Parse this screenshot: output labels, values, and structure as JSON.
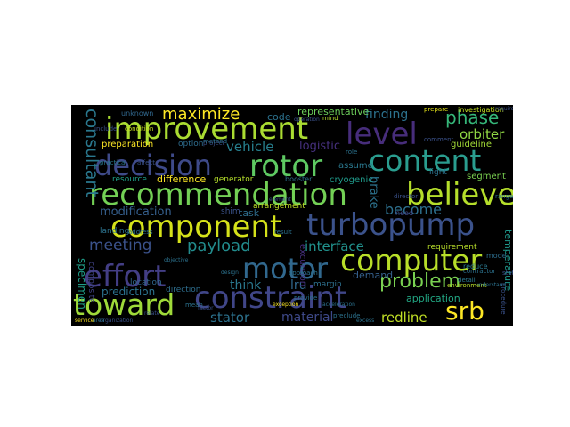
{
  "cloud": {
    "background": "#000000",
    "words": [
      {
        "text": "improvement",
        "color": "#aadc32"
      },
      {
        "text": "decision",
        "color": "#3e4a89"
      },
      {
        "text": "rotor",
        "color": "#5ec962"
      },
      {
        "text": "content",
        "color": "#2a9d8f"
      },
      {
        "text": "recommendation",
        "color": "#73d055"
      },
      {
        "text": "believe",
        "color": "#b5de2b"
      },
      {
        "text": "component",
        "color": "#d5e21a"
      },
      {
        "text": "turbopump",
        "color": "#3b528b"
      },
      {
        "text": "level",
        "color": "#472d7b"
      },
      {
        "text": "computer",
        "color": "#b8de29"
      },
      {
        "text": "effort",
        "color": "#433e85"
      },
      {
        "text": "motor",
        "color": "#31688e"
      },
      {
        "text": "constraint",
        "color": "#404688"
      },
      {
        "text": "toward",
        "color": "#9fda3a"
      },
      {
        "text": "problem",
        "color": "#7ad151"
      },
      {
        "text": "srb",
        "color": "#fde725"
      },
      {
        "text": "consultant",
        "color": "#2a788e"
      },
      {
        "text": "maximize",
        "color": "#fde725"
      },
      {
        "text": "phase",
        "color": "#35b779"
      },
      {
        "text": "finding",
        "color": "#2c728e"
      },
      {
        "text": "orbiter",
        "color": "#8fd744"
      },
      {
        "text": "vehicle",
        "color": "#277f8e"
      },
      {
        "text": "become",
        "color": "#2d708e"
      },
      {
        "text": "modification",
        "color": "#355f8d"
      },
      {
        "text": "meeting",
        "color": "#3b528b"
      },
      {
        "text": "payload",
        "color": "#228c8d"
      },
      {
        "text": "interface",
        "color": "#21918c"
      },
      {
        "text": "brake",
        "color": "#2c728e"
      },
      {
        "text": "stator",
        "color": "#2c728e"
      },
      {
        "text": "material",
        "color": "#3e4989"
      },
      {
        "text": "redline",
        "color": "#c0df25"
      },
      {
        "text": "think",
        "color": "#2a788e"
      },
      {
        "text": "lru",
        "color": "#31688e"
      },
      {
        "text": "application",
        "color": "#22a884"
      },
      {
        "text": "prediction",
        "color": "#2c728e"
      },
      {
        "text": "demand",
        "color": "#35608d"
      },
      {
        "text": "specimen",
        "color": "#1f9e89"
      },
      {
        "text": "representative",
        "color": "#6ccd5a"
      },
      {
        "text": "code",
        "color": "#2c728e"
      },
      {
        "text": "preparation",
        "color": "#fde725"
      },
      {
        "text": "difference",
        "color": "#fde725"
      },
      {
        "text": "resource",
        "color": "#1fa088"
      },
      {
        "text": "generator",
        "color": "#b5de2b"
      },
      {
        "text": "cryogenic",
        "color": "#1f9a8a"
      },
      {
        "text": "arrangement",
        "color": "#bddf26"
      },
      {
        "text": "task",
        "color": "#2e6e8e"
      },
      {
        "text": "shim",
        "color": "#3b528b"
      },
      {
        "text": "requirement",
        "color": "#b8de29"
      },
      {
        "text": "temperature",
        "color": "#1f988b"
      },
      {
        "text": "guideline",
        "color": "#a2da37"
      },
      {
        "text": "segment",
        "color": "#7ad151"
      },
      {
        "text": "assume",
        "color": "#2a788e"
      },
      {
        "text": "investigation",
        "color": "#c2df23"
      },
      {
        "text": "option",
        "color": "#2e6d8e"
      },
      {
        "text": "excursion",
        "color": "#46307e"
      },
      {
        "text": "composite",
        "color": "#414487"
      },
      {
        "text": "landing",
        "color": "#2c728e"
      },
      {
        "text": "location",
        "color": "#31688e"
      },
      {
        "text": "direction",
        "color": "#2e6e8e"
      },
      {
        "text": "margin",
        "color": "#2d708e"
      },
      {
        "text": "need",
        "color": "#3e4a89"
      },
      {
        "text": "reduce",
        "color": "#2a788e"
      },
      {
        "text": "unknown",
        "color": "#31688e"
      },
      {
        "text": "booster",
        "color": "#2d708e"
      },
      {
        "text": "mind",
        "color": "#b5de2b"
      },
      {
        "text": "prepare",
        "color": "#e5e419"
      },
      {
        "text": "include",
        "color": "#3b528b"
      },
      {
        "text": "practical",
        "color": "#2a788e"
      },
      {
        "text": "condition",
        "color": "#c8e020"
      },
      {
        "text": "mode",
        "color": "#2e6e8e"
      },
      {
        "text": "detail",
        "color": "#2a788e"
      },
      {
        "text": "environment",
        "color": "#b8de29"
      },
      {
        "text": "comment",
        "color": "#3b528b"
      },
      {
        "text": "light",
        "color": "#2c728e"
      },
      {
        "text": "role",
        "color": "#2c728e"
      },
      {
        "text": "contractor",
        "color": "#2c728e"
      },
      {
        "text": "procedure",
        "color": "#3b528b"
      },
      {
        "text": "provide",
        "color": "#2c728e"
      },
      {
        "text": "exception",
        "color": "#fde725"
      },
      {
        "text": "preclude",
        "color": "#2c728e"
      },
      {
        "text": "mean",
        "color": "#2c728e"
      },
      {
        "text": "project",
        "color": "#3b528b"
      },
      {
        "text": "method",
        "color": "#2c728e"
      },
      {
        "text": "require",
        "color": "#3b528b"
      },
      {
        "text": "logistic",
        "color": "#46307e"
      },
      {
        "text": "affect",
        "color": "#3b528b"
      },
      {
        "text": "address",
        "color": "#2c728e"
      },
      {
        "text": "understand",
        "color": "#2c728e"
      },
      {
        "text": "result",
        "color": "#2c728e"
      },
      {
        "text": "operation",
        "color": "#3b528b"
      },
      {
        "text": "approach",
        "color": "#2c728e"
      },
      {
        "text": "director",
        "color": "#3b528b"
      },
      {
        "text": "acceleration",
        "color": "#2c728e"
      },
      {
        "text": "state",
        "color": "#3b528b"
      },
      {
        "text": "organization",
        "color": "#3b528b"
      },
      {
        "text": "area",
        "color": "#2c728e"
      },
      {
        "text": "service",
        "color": "#fde725"
      },
      {
        "text": "excess",
        "color": "#2c728e"
      },
      {
        "text": "relate",
        "color": "#3b528b"
      },
      {
        "text": "objective",
        "color": "#2c728e"
      },
      {
        "text": "element",
        "color": "#3b528b"
      },
      {
        "text": "design",
        "color": "#2c728e"
      },
      {
        "text": "factor",
        "color": "#3b528b"
      },
      {
        "text": "range",
        "color": "#2c728e"
      }
    ]
  }
}
